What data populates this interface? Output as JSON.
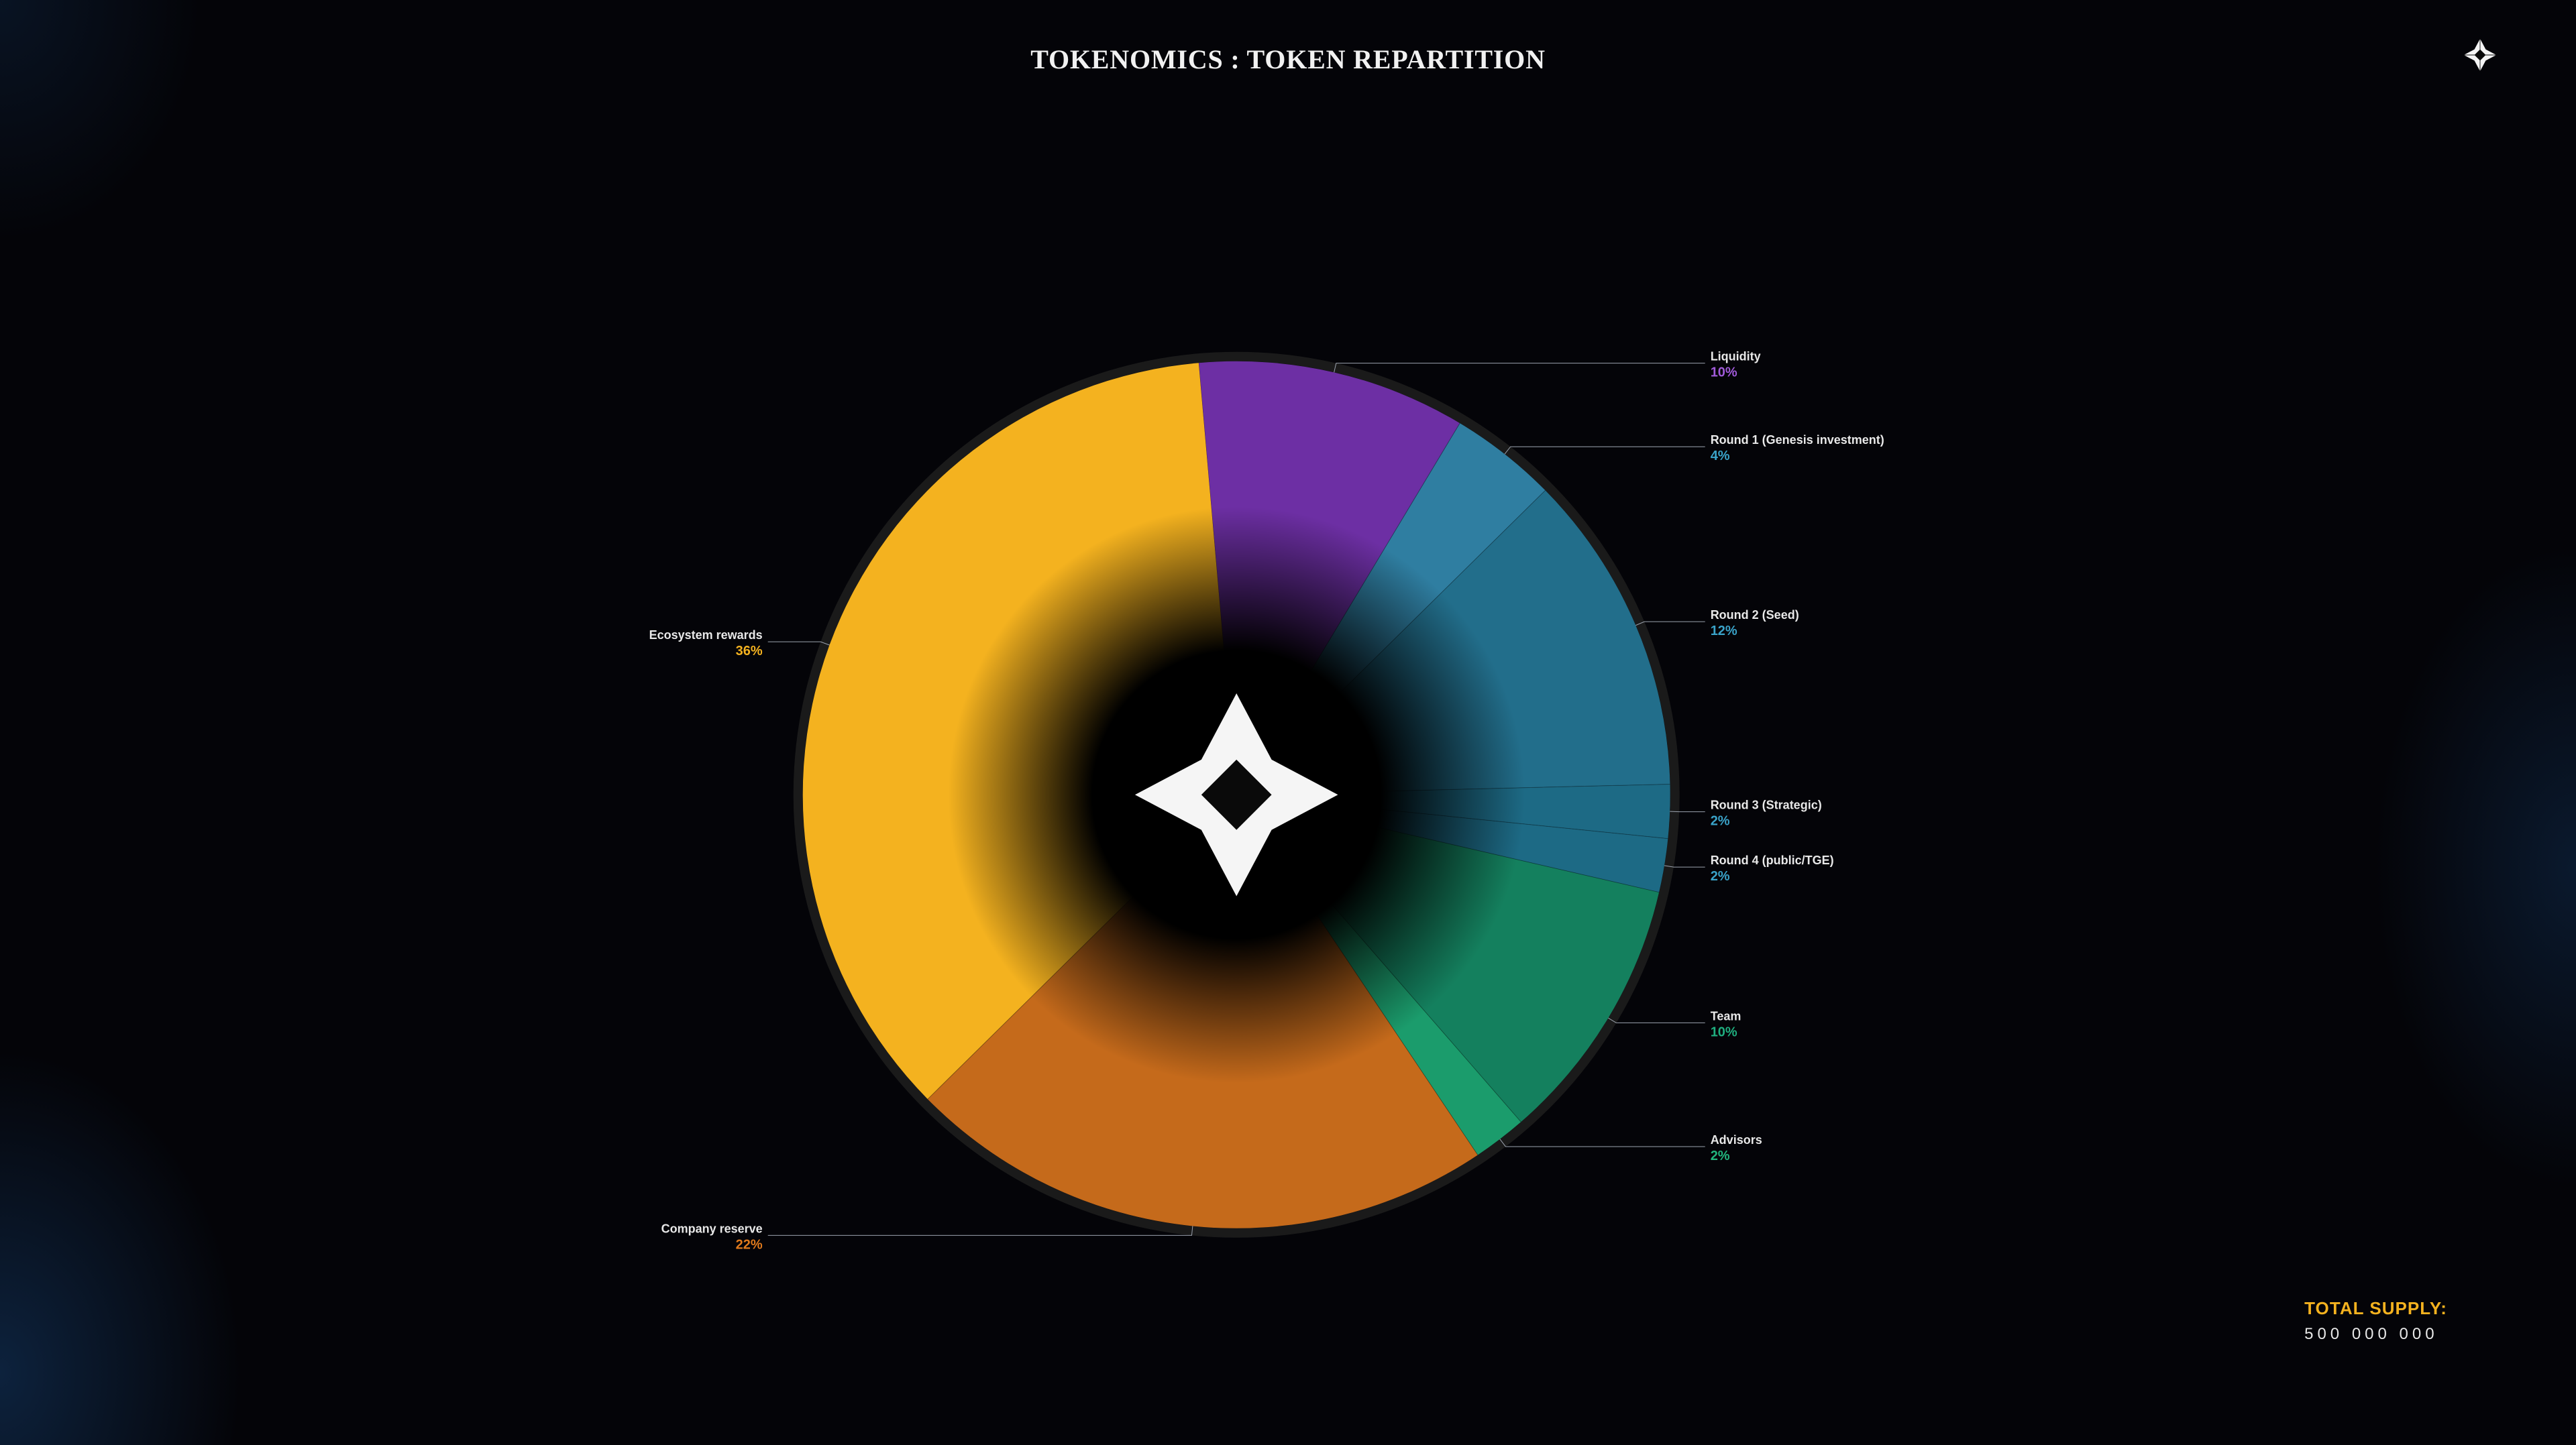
{
  "title": "TOKENOMICS : TOKEN REPARTITION",
  "title_fontsize": 40,
  "title_color": "#f1f1f1",
  "background_color": "#040408",
  "total_supply": {
    "label": "TOTAL SUPPLY:",
    "value": "500 000 000",
    "label_color": "#f4b21f",
    "value_color": "#e7e7e7",
    "label_fontsize": 26,
    "value_fontsize": 24
  },
  "chart": {
    "type": "pie",
    "start_angle_deg": -95,
    "direction": "clockwise",
    "ring_outer_stroke": "#1a1a1a",
    "ring_outer_stroke_width": 14,
    "inner_fade_color": "#000000",
    "segments": [
      {
        "label": "Liquidity",
        "percent": 10,
        "color": "#6d2fa4",
        "pct_color": "#a05ad9",
        "label_side": "right"
      },
      {
        "label": "Round 1 (Genesis investment)",
        "percent": 4,
        "color": "#2f7ea1",
        "pct_color": "#3aa3c9",
        "label_side": "right"
      },
      {
        "label": "Round 2 (Seed)",
        "percent": 12,
        "color": "#226e8b",
        "pct_color": "#3aa3c9",
        "label_side": "right"
      },
      {
        "label": "Round 3 (Strategic)",
        "percent": 2,
        "color": "#1d6a85",
        "pct_color": "#3aa3c9",
        "label_side": "right"
      },
      {
        "label": "Round 4 (public/TGE)",
        "percent": 2,
        "color": "#1d6a85",
        "pct_color": "#3aa3c9",
        "label_side": "right"
      },
      {
        "label": "Team",
        "percent": 10,
        "color": "#14805e",
        "pct_color": "#1fae7f",
        "label_side": "right"
      },
      {
        "label": "Advisors",
        "percent": 2,
        "color": "#1b9c6c",
        "pct_color": "#22b67e",
        "label_side": "right"
      },
      {
        "label": "Company reserve",
        "percent": 22,
        "color": "#c56a1b",
        "pct_color": "#e07a1c",
        "label_side": "left"
      },
      {
        "label": "Ecosystem rewards",
        "percent": 36,
        "color": "#f4b21f",
        "pct_color": "#f4b21f",
        "label_side": "left"
      }
    ],
    "label_fontsize": 18,
    "pct_fontsize": 20,
    "label_color": "#e8e8e8",
    "leader_color": "#babdc2"
  },
  "logo": {
    "size": 56
  }
}
